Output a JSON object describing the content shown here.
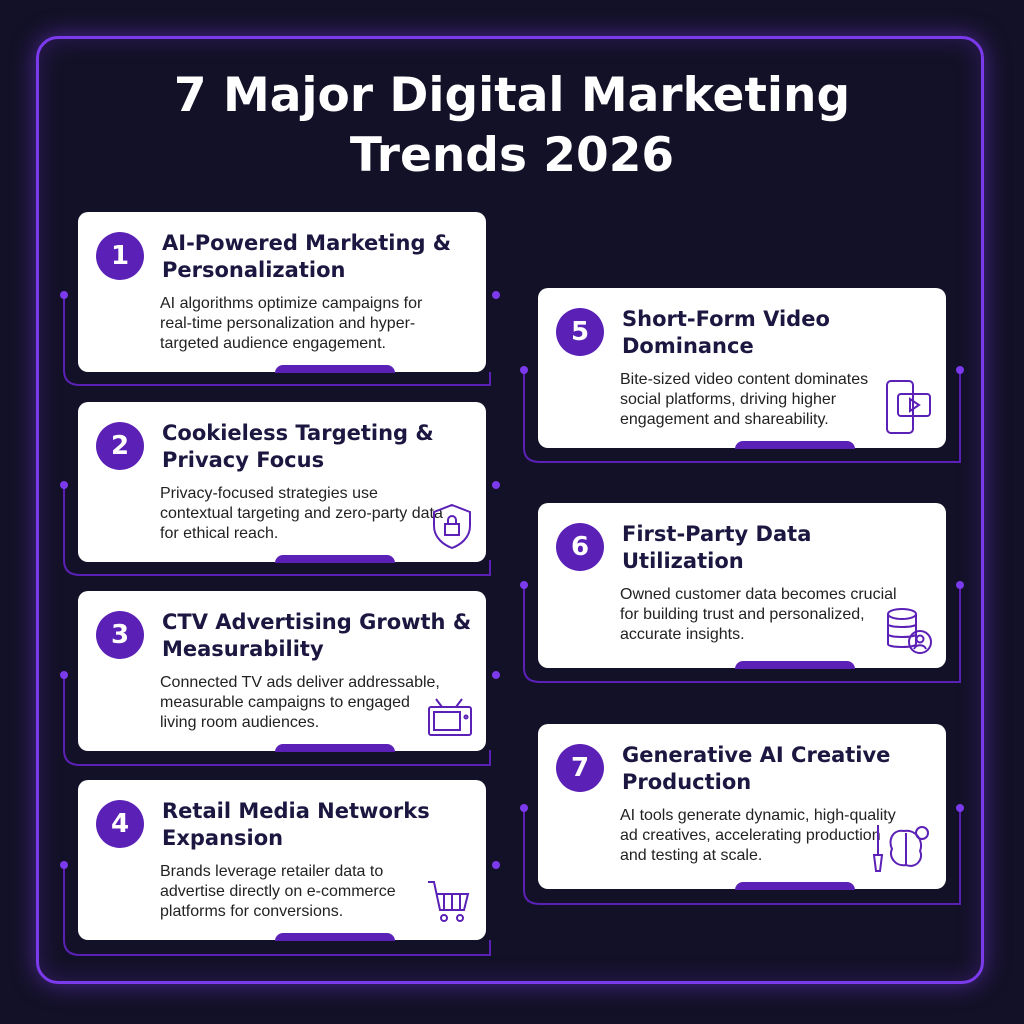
{
  "header": {
    "title": "7 Major Digital Marketing Trends 2026"
  },
  "cards": [
    {
      "number": "1",
      "title": "AI-Powered Marketing & Personalization",
      "description": "AI algorithms optimize campaigns for real-time personalization and hyper-targeted audience engagement."
    },
    {
      "number": "2",
      "title": "Cookieless Targeting & Privacy Focus",
      "description": "Privacy-focused strategies use contextual targeting and zero-party data for ethical reach."
    },
    {
      "number": "3",
      "title": "CTV Advertising Growth & Measurability",
      "description": "Connected TV ads deliver addressable, measurable campaigns to engaged living room audiences."
    },
    {
      "number": "4",
      "title": "Retail Media Networks Expansion",
      "description": "Brands leverage retailer data to advertise directly on e-commerce platforms for conversions."
    },
    {
      "number": "5",
      "title": "Short-Form Video Dominance",
      "description": "Bite-sized video content dominates social platforms, driving higher engagement and shareability."
    },
    {
      "number": "6",
      "title": "First-Party Data Utilization",
      "description": "Owned customer data becomes crucial for building trust and personalized, accurate insights."
    },
    {
      "number": "7",
      "title": "Generative AI Creative Production",
      "description": "AI tools generate dynamic, high-quality ad creatives, accelerating production and testing at scale."
    }
  ]
}
